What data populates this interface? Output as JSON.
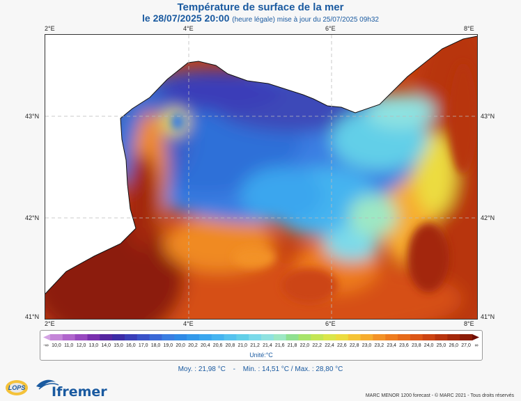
{
  "title": "Température de surface de la mer",
  "subtitle_date": "le 28/07/2025 20:00",
  "subtitle_note": "(heure légale) mise à jour du 25/07/2025 09h32",
  "axes": {
    "top_lon": [
      "2°E",
      "4°E",
      "6°E",
      "8°E"
    ],
    "bottom_lon": [
      "2°E",
      "4°E",
      "6°E",
      "8°E"
    ],
    "left_lat": [
      "43°N",
      "42°N",
      "41°N"
    ],
    "right_lat": [
      "43°N",
      "42°N",
      "41°N"
    ]
  },
  "colorbar": {
    "labels": [
      "-∞",
      "10,0",
      "11,0",
      "12,0",
      "13,0",
      "14,0",
      "15,0",
      "16,0",
      "17,0",
      "18,0",
      "19,0",
      "20,0",
      "20,2",
      "20,4",
      "20,6",
      "20,8",
      "21,0",
      "21,2",
      "21,4",
      "21,6",
      "21,8",
      "22,0",
      "22,2",
      "22,4",
      "22,6",
      "22,8",
      "23,0",
      "23,2",
      "23,4",
      "23,6",
      "23,8",
      "24,0",
      "25,0",
      "26,0",
      "27,0",
      "∞"
    ],
    "colors": [
      "#d4a4e4",
      "#c485d8",
      "#b065cc",
      "#9848bf",
      "#7a2fae",
      "#5526a0",
      "#3d2ca6",
      "#3a3eb8",
      "#3a52c8",
      "#3a68d6",
      "#3a7ee2",
      "#2f8ae6",
      "#3399ea",
      "#3aa6ee",
      "#45b4f0",
      "#55c2ee",
      "#62cfe8",
      "#7bdaea",
      "#8fe2e0",
      "#9de8c4",
      "#8fe090",
      "#a8e46a",
      "#c4e654",
      "#dbe64a",
      "#ecdc40",
      "#f5c436",
      "#f6ac2e",
      "#f39226",
      "#ee7c1e",
      "#e66a1a",
      "#dc5616",
      "#cc4412",
      "#b8340e",
      "#a3280b",
      "#8c1c08",
      "#700f06"
    ],
    "unit": "Unité:°C"
  },
  "stats": {
    "mean": "Moy. : 21,98 °C",
    "sep": "-",
    "minmax": "Min. : 14,51 °C / Max. : 28,80 °C"
  },
  "logos": {
    "lops": "LOPS",
    "ifremer": "Ifremer"
  },
  "footer": "MARC MENOR 1200 forecast - © MARC 2021 - Tous droits réservés"
}
